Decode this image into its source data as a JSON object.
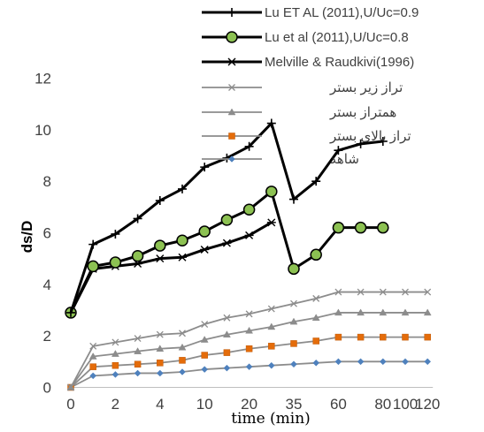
{
  "chart_data": {
    "type": "line",
    "xlabel": "time (min)",
    "ylabel": "ds/D",
    "ylim": [
      0,
      12
    ],
    "y_ticks": [
      "0",
      "2",
      "4",
      "6",
      "8",
      "10",
      "12"
    ],
    "x_positions": [
      0,
      1,
      2,
      3,
      4,
      5,
      6,
      7,
      8,
      9,
      10,
      11,
      12,
      13,
      14,
      15,
      16
    ],
    "x_ticks": [
      {
        "pos": 0,
        "label": "0"
      },
      {
        "pos": 2,
        "label": "2"
      },
      {
        "pos": 4,
        "label": "4"
      },
      {
        "pos": 6,
        "label": "10"
      },
      {
        "pos": 8,
        "label": "20"
      },
      {
        "pos": 10,
        "label": "35"
      },
      {
        "pos": 12,
        "label": "60"
      },
      {
        "pos": 14,
        "label": "80"
      },
      {
        "pos": 15,
        "label": "100"
      },
      {
        "pos": 16,
        "label": "120"
      }
    ],
    "grid": false,
    "legend_position": "top",
    "series": [
      {
        "name": "Lu ET AL (2011),U/Uc=0.9",
        "color": "#000000",
        "marker": "plus",
        "x": [
          0,
          1,
          2,
          3,
          4,
          5,
          6,
          7,
          8,
          9,
          10,
          11,
          12,
          13,
          14
        ],
        "values": [
          2.9,
          5.55,
          5.95,
          6.55,
          7.25,
          7.7,
          8.55,
          8.9,
          9.35,
          10.25,
          7.3,
          8.0,
          9.2,
          9.45,
          9.55
        ]
      },
      {
        "name": "Lu et al (2011),U/Uc=0.8",
        "color": "#000000",
        "marker": "circle-green",
        "marker_fill": "#8cc152",
        "x": [
          0,
          1,
          2,
          3,
          4,
          5,
          6,
          7,
          8,
          9,
          10,
          11,
          12,
          13,
          14
        ],
        "values": [
          2.9,
          4.7,
          4.85,
          5.1,
          5.5,
          5.7,
          6.05,
          6.5,
          6.9,
          7.6,
          4.6,
          5.15,
          6.2,
          6.2,
          6.2
        ]
      },
      {
        "name": "Melville & Raudkivi(1996)",
        "color": "#000000",
        "marker": "asterisk",
        "x": [
          0,
          1,
          2,
          3,
          4,
          5,
          6,
          7,
          8,
          9
        ],
        "values": [
          2.9,
          4.6,
          4.7,
          4.8,
          5.0,
          5.05,
          5.35,
          5.6,
          5.9,
          6.4
        ]
      },
      {
        "name": "تراز زیر بستر",
        "color": "#8c8c8c",
        "marker": "x",
        "x": [
          0,
          1,
          2,
          3,
          4,
          5,
          6,
          7,
          8,
          9,
          10,
          11,
          12,
          13,
          14,
          15,
          16
        ],
        "values": [
          0,
          1.6,
          1.75,
          1.9,
          2.05,
          2.1,
          2.45,
          2.7,
          2.85,
          3.05,
          3.25,
          3.45,
          3.7,
          3.7,
          3.7,
          3.7,
          3.7
        ]
      },
      {
        "name": "همتراز بستر",
        "color": "#8c8c8c",
        "marker": "triangle",
        "x": [
          0,
          1,
          2,
          3,
          4,
          5,
          6,
          7,
          8,
          9,
          10,
          11,
          12,
          13,
          14,
          15,
          16
        ],
        "values": [
          0,
          1.2,
          1.3,
          1.4,
          1.5,
          1.55,
          1.85,
          2.05,
          2.2,
          2.35,
          2.55,
          2.7,
          2.9,
          2.9,
          2.9,
          2.9,
          2.9
        ]
      },
      {
        "name": "تراز بالای بستر",
        "color": "#e46c0a",
        "line_color": "#8c8c8c",
        "marker": "square",
        "x": [
          0,
          1,
          2,
          3,
          4,
          5,
          6,
          7,
          8,
          9,
          10,
          11,
          12,
          13,
          14,
          15,
          16
        ],
        "values": [
          0,
          0.8,
          0.85,
          0.9,
          0.95,
          1.05,
          1.25,
          1.35,
          1.5,
          1.6,
          1.7,
          1.8,
          1.95,
          1.95,
          1.95,
          1.95,
          1.95
        ]
      },
      {
        "name": "شاهد",
        "color": "#4f81bd",
        "line_color": "#8c8c8c",
        "marker": "diamond",
        "x": [
          0,
          1,
          2,
          3,
          4,
          5,
          6,
          7,
          8,
          9,
          10,
          11,
          12,
          13,
          14,
          15,
          16
        ],
        "values": [
          0,
          0.45,
          0.5,
          0.55,
          0.55,
          0.6,
          0.7,
          0.75,
          0.8,
          0.85,
          0.9,
          0.95,
          1.0,
          1.0,
          1.0,
          1.0,
          1.0
        ]
      }
    ]
  }
}
